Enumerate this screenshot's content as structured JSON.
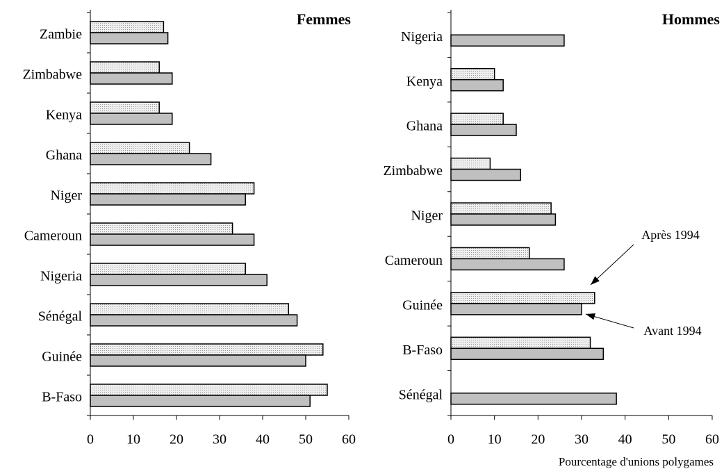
{
  "chart_data": [
    {
      "type": "hbar",
      "title": "Femmes",
      "categories": [
        "Zambie",
        "Zimbabwe",
        "Kenya",
        "Ghana",
        "Niger",
        "Cameroun",
        "Nigeria",
        "Sénégal",
        "Guinée",
        "B-Faso"
      ],
      "series": [
        {
          "color": "#e2e2e2",
          "values": [
            17,
            16,
            16,
            23,
            38,
            33,
            36,
            46,
            54,
            55
          ]
        },
        {
          "color": "#c0c0c0",
          "values": [
            18,
            19,
            19,
            28,
            36,
            38,
            41,
            48,
            50,
            51
          ]
        }
      ],
      "xlim": [
        0,
        60
      ],
      "xticks": [
        0,
        10,
        20,
        30,
        40,
        50,
        60
      ]
    },
    {
      "type": "hbar",
      "title": "Hommes",
      "x_label": "Pourcentage d'unions polygames",
      "categories": [
        "Nigeria",
        "Kenya",
        "Ghana",
        "Zimbabwe",
        "Niger",
        "Cameroun",
        "Guinée",
        "B-Faso",
        "Sénégal"
      ],
      "series": [
        {
          "name": "Après 1994",
          "color": "#e2e2e2",
          "values": [
            null,
            10,
            12,
            9,
            23,
            18,
            33,
            32,
            null
          ]
        },
        {
          "name": "Avant 1994",
          "color": "#c0c0c0",
          "values": [
            26,
            12,
            15,
            16,
            24,
            26,
            30,
            35,
            38
          ]
        }
      ],
      "xlim": [
        0,
        60
      ],
      "xticks": [
        0,
        10,
        20,
        30,
        40,
        50,
        60
      ]
    }
  ]
}
